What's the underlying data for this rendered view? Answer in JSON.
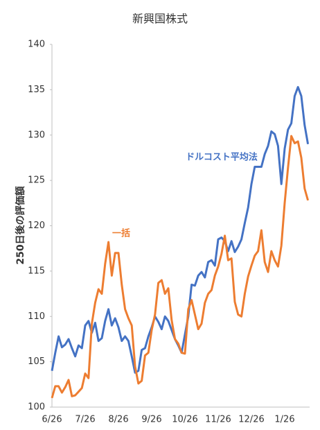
{
  "chart_data": {
    "type": "line",
    "title": "新興国株式",
    "y_label": "250日後の評価額",
    "categories": [
      "6/26",
      null,
      null,
      null,
      null,
      null,
      null,
      null,
      null,
      null,
      "7/26",
      null,
      null,
      null,
      null,
      null,
      null,
      null,
      null,
      null,
      "8/26",
      null,
      null,
      null,
      null,
      null,
      null,
      null,
      null,
      null,
      "9/26",
      null,
      null,
      null,
      null,
      null,
      null,
      null,
      null,
      null,
      "10/26",
      null,
      null,
      null,
      null,
      null,
      null,
      null,
      null,
      null,
      "11/26",
      null,
      null,
      null,
      null,
      null,
      null,
      null,
      null,
      null,
      "12/26",
      null,
      null,
      null,
      null,
      null,
      null,
      null,
      null,
      null,
      "1/26",
      null,
      null,
      null,
      null,
      null,
      null,
      null
    ],
    "series": [
      {
        "name": "ドルコスト平均法",
        "color": "#4472c4",
        "values": [
          104,
          106,
          107.8,
          106.6,
          106.9,
          107.5,
          106.5,
          105.6,
          106.8,
          106.5,
          109,
          109.5,
          108.2,
          109.3,
          107.3,
          107.6,
          109.5,
          110.8,
          109,
          109.8,
          108.8,
          107.3,
          107.8,
          107.3,
          105.6,
          103.8,
          104,
          106.3,
          106.5,
          107.8,
          108.8,
          110,
          109.4,
          108.6,
          110,
          109.5,
          108.5,
          107.5,
          106.8,
          106,
          108,
          110,
          113.5,
          113.4,
          114.5,
          114.9,
          114.3,
          116,
          116.2,
          115.6,
          118.5,
          118.7,
          118.3,
          117.2,
          118.3,
          117.1,
          117.7,
          118.5,
          120.3,
          122,
          124.6,
          126.5,
          126.5,
          126.5,
          127.9,
          128.8,
          130.4,
          130.1,
          128.8,
          124.6,
          128.5,
          130.6,
          131.3,
          134.3,
          135.3,
          134.3,
          131.1,
          129
        ]
      },
      {
        "name": "一括",
        "color": "#ed7d31",
        "values": [
          101,
          102.3,
          102.3,
          101.6,
          102.2,
          103,
          101.2,
          101.3,
          101.7,
          102.1,
          103.7,
          103.2,
          109.2,
          111.5,
          113,
          112.5,
          115.8,
          118.2,
          114.5,
          117,
          117,
          113.5,
          110.8,
          109.8,
          109,
          104.5,
          102.6,
          102.9,
          105.7,
          106,
          108.5,
          110.2,
          113.7,
          114,
          112.5,
          113.1,
          109.6,
          107.5,
          107,
          106,
          105.9,
          110.8,
          111.8,
          110.2,
          108.6,
          109.2,
          111.5,
          112.5,
          112.9,
          114.5,
          115.5,
          116.9,
          118.9,
          116.2,
          116.4,
          111.6,
          110.2,
          110,
          112.5,
          114.4,
          115.6,
          116.7,
          117.2,
          119.5,
          116,
          114.9,
          117.2,
          116.2,
          115.5,
          117.8,
          122.5,
          126.4,
          129.9,
          129.1,
          129.3,
          127.5,
          124.1,
          122.8
        ]
      }
    ],
    "ylim": [
      100,
      140
    ],
    "yticks": [
      100,
      105,
      110,
      115,
      120,
      125,
      130,
      135,
      140
    ],
    "grid": false
  }
}
